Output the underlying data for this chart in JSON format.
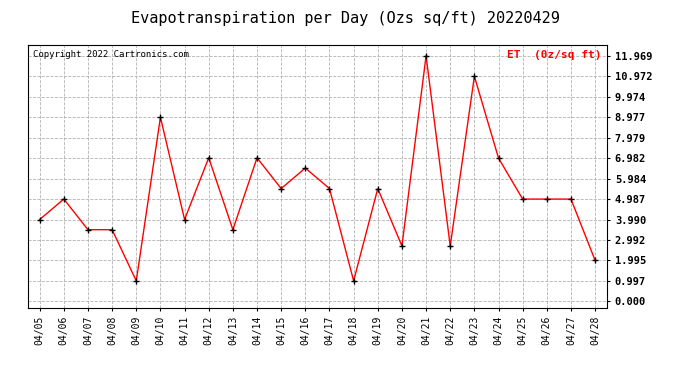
{
  "title": "Evapotranspiration per Day (Ozs sq/ft) 20220429",
  "copyright": "Copyright 2022 Cartronics.com",
  "legend_label": "ET  (0z/sq ft)",
  "dates": [
    "04/05",
    "04/06",
    "04/07",
    "04/08",
    "04/09",
    "04/10",
    "04/11",
    "04/12",
    "04/13",
    "04/14",
    "04/15",
    "04/16",
    "04/17",
    "04/18",
    "04/19",
    "04/20",
    "04/21",
    "04/22",
    "04/23",
    "04/24",
    "04/25",
    "04/26",
    "04/27",
    "04/28"
  ],
  "values": [
    3.99,
    4.987,
    3.494,
    3.494,
    0.997,
    8.977,
    3.99,
    7.0,
    3.494,
    7.0,
    5.5,
    6.5,
    5.5,
    1.0,
    5.5,
    2.7,
    11.969,
    2.7,
    10.972,
    6.982,
    4.987,
    4.987,
    4.987,
    1.995
  ],
  "line_color": "#FF0000",
  "marker": "+",
  "marker_color": "#000000",
  "grid_color": "#AAAAAA",
  "background_color": "#FFFFFF",
  "title_fontsize": 11,
  "yticks": [
    0.0,
    0.997,
    1.995,
    2.992,
    3.99,
    4.987,
    5.984,
    6.982,
    7.979,
    8.977,
    9.974,
    10.972,
    11.969
  ],
  "ylim": [
    -0.3,
    12.5
  ],
  "legend_color": "#FF0000"
}
